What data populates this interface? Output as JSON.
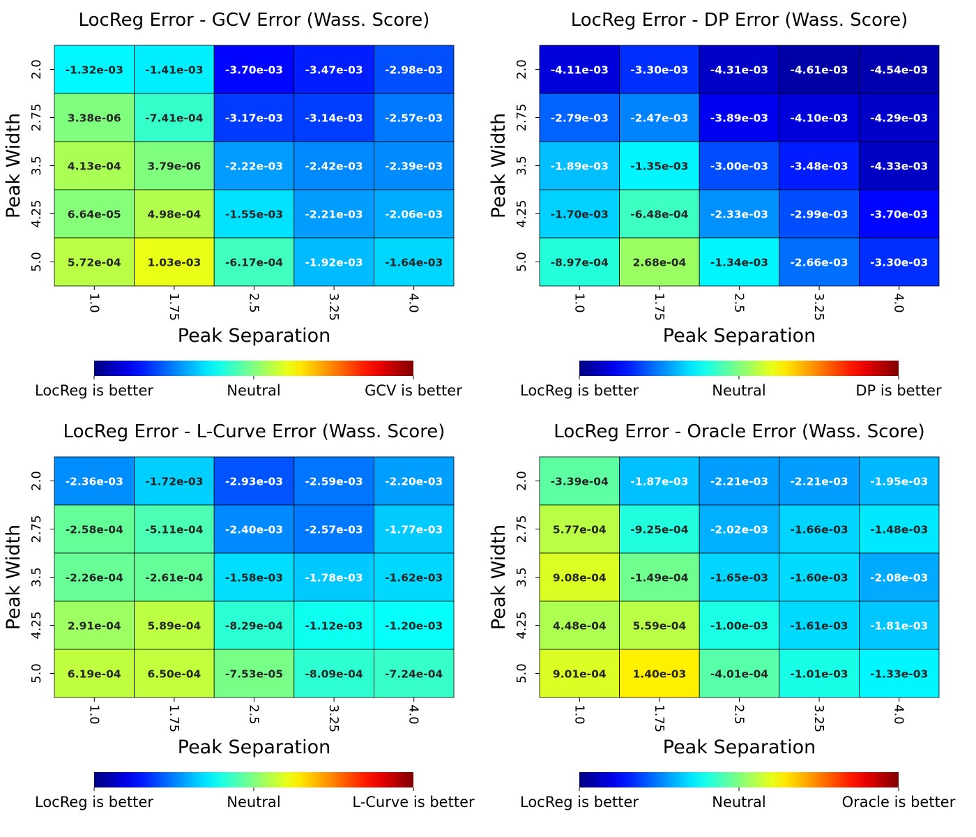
{
  "chart_data": [
    {
      "type": "heatmap",
      "title": "LocReg Error - GCV Error (Wass. Score)",
      "xlabel": "Peak Separation",
      "ylabel": "Peak Width",
      "x_categories": [
        "1.0",
        "1.75",
        "2.5",
        "3.25",
        "4.0"
      ],
      "y_categories": [
        "2.0",
        "2.75",
        "3.5",
        "4.25",
        "5.0"
      ],
      "values": [
        [
          -0.00132,
          -0.00141,
          -0.0037,
          -0.00347,
          -0.00298
        ],
        [
          3.38e-06,
          -0.000741,
          -0.00317,
          -0.00314,
          -0.00257
        ],
        [
          0.000413,
          3.79e-06,
          -0.00222,
          -0.00242,
          -0.00239
        ],
        [
          6.64e-05,
          0.000498,
          -0.00155,
          -0.00221,
          -0.00206
        ],
        [
          0.000572,
          0.00103,
          -0.000617,
          -0.00192,
          -0.00164
        ]
      ],
      "labels": [
        [
          "-1.32e-03",
          "-1.41e-03",
          "-3.70e-03",
          "-3.47e-03",
          "-2.98e-03"
        ],
        [
          "3.38e-06",
          "-7.41e-04",
          "-3.17e-03",
          "-3.14e-03",
          "-2.57e-03"
        ],
        [
          "4.13e-04",
          "3.79e-06",
          "-2.22e-03",
          "-2.42e-03",
          "-2.39e-03"
        ],
        [
          "6.64e-05",
          "4.98e-04",
          "-1.55e-03",
          "-2.21e-03",
          "-2.06e-03"
        ],
        [
          "5.72e-04",
          "1.03e-03",
          "-6.17e-04",
          "-1.92e-03",
          "-1.64e-03"
        ]
      ],
      "colorbar": {
        "colormap": "jet",
        "range": [
          -0.005,
          0.005
        ],
        "labels": [
          "LocReg is better",
          "Neutral",
          "GCV is better"
        ]
      }
    },
    {
      "type": "heatmap",
      "title": "LocReg Error - DP Error (Wass. Score)",
      "xlabel": "Peak Separation",
      "ylabel": "Peak Width",
      "x_categories": [
        "1.0",
        "1.75",
        "2.5",
        "3.25",
        "4.0"
      ],
      "y_categories": [
        "2.0",
        "2.75",
        "3.5",
        "4.25",
        "5.0"
      ],
      "values": [
        [
          -0.00411,
          -0.0033,
          -0.00431,
          -0.00461,
          -0.00454
        ],
        [
          -0.00279,
          -0.00247,
          -0.00389,
          -0.0041,
          -0.00429
        ],
        [
          -0.00189,
          -0.00135,
          -0.003,
          -0.00348,
          -0.00433
        ],
        [
          -0.0017,
          -0.000648,
          -0.00233,
          -0.00299,
          -0.0037
        ],
        [
          -0.000897,
          0.000268,
          -0.00134,
          -0.00266,
          -0.0033
        ]
      ],
      "labels": [
        [
          "-4.11e-03",
          "-3.30e-03",
          "-4.31e-03",
          "-4.61e-03",
          "-4.54e-03"
        ],
        [
          "-2.79e-03",
          "-2.47e-03",
          "-3.89e-03",
          "-4.10e-03",
          "-4.29e-03"
        ],
        [
          "-1.89e-03",
          "-1.35e-03",
          "-3.00e-03",
          "-3.48e-03",
          "-4.33e-03"
        ],
        [
          "-1.70e-03",
          "-6.48e-04",
          "-2.33e-03",
          "-2.99e-03",
          "-3.70e-03"
        ],
        [
          "-8.97e-04",
          "2.68e-04",
          "-1.34e-03",
          "-2.66e-03",
          "-3.30e-03"
        ]
      ],
      "colorbar": {
        "colormap": "jet",
        "range": [
          -0.005,
          0.005
        ],
        "labels": [
          "LocReg is better",
          "Neutral",
          "DP is better"
        ]
      }
    },
    {
      "type": "heatmap",
      "title": "LocReg Error - L-Curve Error (Wass. Score)",
      "xlabel": "Peak Separation",
      "ylabel": "Peak Width",
      "x_categories": [
        "1.0",
        "1.75",
        "2.5",
        "3.25",
        "4.0"
      ],
      "y_categories": [
        "2.0",
        "2.75",
        "3.5",
        "4.25",
        "5.0"
      ],
      "values": [
        [
          -0.00236,
          -0.00172,
          -0.00293,
          -0.00259,
          -0.0022
        ],
        [
          -0.000258,
          -0.000511,
          -0.0024,
          -0.00257,
          -0.00177
        ],
        [
          -0.000226,
          -0.000261,
          -0.00158,
          -0.00178,
          -0.00162
        ],
        [
          0.000291,
          0.000589,
          -0.000829,
          -0.00112,
          -0.0012
        ],
        [
          0.000619,
          0.00065,
          -7.53e-05,
          -0.000809,
          -0.000724
        ]
      ],
      "labels": [
        [
          "-2.36e-03",
          "-1.72e-03",
          "-2.93e-03",
          "-2.59e-03",
          "-2.20e-03"
        ],
        [
          "-2.58e-04",
          "-5.11e-04",
          "-2.40e-03",
          "-2.57e-03",
          "-1.77e-03"
        ],
        [
          "-2.26e-04",
          "-2.61e-04",
          "-1.58e-03",
          "-1.78e-03",
          "-1.62e-03"
        ],
        [
          "2.91e-04",
          "5.89e-04",
          "-8.29e-04",
          "-1.12e-03",
          "-1.20e-03"
        ],
        [
          "6.19e-04",
          "6.50e-04",
          "-7.53e-05",
          "-8.09e-04",
          "-7.24e-04"
        ]
      ],
      "colorbar": {
        "colormap": "jet",
        "range": [
          -0.005,
          0.005
        ],
        "labels": [
          "LocReg is better",
          "Neutral",
          "L-Curve is better"
        ]
      }
    },
    {
      "type": "heatmap",
      "title": "LocReg Error - Oracle Error (Wass. Score)",
      "xlabel": "Peak Separation",
      "ylabel": "Peak Width",
      "x_categories": [
        "1.0",
        "1.75",
        "2.5",
        "3.25",
        "4.0"
      ],
      "y_categories": [
        "2.0",
        "2.75",
        "3.5",
        "4.25",
        "5.0"
      ],
      "values": [
        [
          -0.000339,
          -0.00187,
          -0.00221,
          -0.00221,
          -0.00195
        ],
        [
          0.000577,
          -0.000925,
          -0.00202,
          -0.00166,
          -0.00148
        ],
        [
          0.000908,
          -0.000149,
          -0.00165,
          -0.0016,
          -0.00208
        ],
        [
          0.000448,
          0.000559,
          -0.001,
          -0.00161,
          -0.00181
        ],
        [
          0.000901,
          0.0014,
          -0.000401,
          -0.00101,
          -0.00133
        ]
      ],
      "labels": [
        [
          "-3.39e-04",
          "-1.87e-03",
          "-2.21e-03",
          "-2.21e-03",
          "-1.95e-03"
        ],
        [
          "5.77e-04",
          "-9.25e-04",
          "-2.02e-03",
          "-1.66e-03",
          "-1.48e-03"
        ],
        [
          "9.08e-04",
          "-1.49e-04",
          "-1.65e-03",
          "-1.60e-03",
          "-2.08e-03"
        ],
        [
          "4.48e-04",
          "5.59e-04",
          "-1.00e-03",
          "-1.61e-03",
          "-1.81e-03"
        ],
        [
          "9.01e-04",
          "1.40e-03",
          "-4.01e-04",
          "-1.01e-03",
          "-1.33e-03"
        ]
      ],
      "colorbar": {
        "colormap": "jet",
        "range": [
          -0.005,
          0.005
        ],
        "labels": [
          "LocReg is better",
          "Neutral",
          "Oracle is better"
        ]
      }
    }
  ]
}
